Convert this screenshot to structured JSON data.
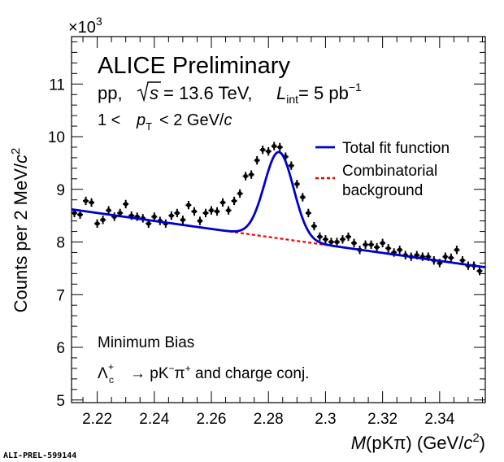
{
  "chart_data": {
    "type": "scatter",
    "experiment": "ALICE Preliminary",
    "collision_system": "pp,",
    "sqrt_s_label": "s",
    "energy_text": "= 13.6 TeV,",
    "lumi_symbol": "L",
    "lumi_sub": "int",
    "lumi_text": "= 5 pb",
    "lumi_sup": "−1",
    "pt_range_left": "1 <",
    "pt_symbol": "p",
    "pt_sub": "T",
    "pt_range_right": "< 2 GeV/",
    "pt_unit_c": "c",
    "trigger_label": "Minimum Bias",
    "decay_particle": "Λ",
    "decay_sup": "+",
    "decay_sub": "c",
    "decay_arrow": "→",
    "decay_products_p": "pK",
    "decay_products_k_sup": "−",
    "decay_products_pi": "π",
    "decay_products_pi_sup": "+",
    "decay_suffix": "and charge conj.",
    "multiplier_text": "×10",
    "multiplier_exp": "3",
    "xlabel_M": "M",
    "xlabel_rest": "(pKπ) (GeV/",
    "xlabel_c": "c",
    "xlabel_c_exp": "2",
    "xlabel_close": ")",
    "ylabel_main": "Counts per 2 MeV/",
    "ylabel_c": "c",
    "ylabel_c_exp": "2",
    "xlim": [
      2.211,
      2.356
    ],
    "ylim": [
      4.95,
      11.9
    ],
    "x_ticks": [
      "2.22",
      "2.24",
      "2.26",
      "2.28",
      "2.3",
      "2.32",
      "2.34"
    ],
    "y_ticks": [
      "5",
      "6",
      "7",
      "8",
      "9",
      "10",
      "11"
    ],
    "legend": [
      {
        "label": "Total fit function",
        "color": "#0000cc",
        "style": "solid"
      },
      {
        "label": "Combinatorial",
        "label2": "background",
        "color": "#ee0000",
        "style": "dashed"
      }
    ],
    "background_line": {
      "x": [
        2.211,
        2.356
      ],
      "y": [
        8.62,
        7.52
      ]
    },
    "peak": {
      "mean": 2.2837,
      "sigma": 0.0051,
      "amplitude": 1.64
    },
    "data_points": {
      "x": [
        2.212,
        2.214,
        2.216,
        2.218,
        2.22,
        2.222,
        2.224,
        2.226,
        2.228,
        2.23,
        2.232,
        2.234,
        2.236,
        2.238,
        2.24,
        2.242,
        2.244,
        2.246,
        2.248,
        2.25,
        2.252,
        2.254,
        2.256,
        2.258,
        2.26,
        2.262,
        2.264,
        2.266,
        2.268,
        2.27,
        2.272,
        2.274,
        2.276,
        2.278,
        2.28,
        2.282,
        2.284,
        2.286,
        2.288,
        2.29,
        2.292,
        2.294,
        2.296,
        2.298,
        2.3,
        2.302,
        2.304,
        2.306,
        2.308,
        2.31,
        2.312,
        2.314,
        2.316,
        2.318,
        2.32,
        2.322,
        2.324,
        2.326,
        2.328,
        2.33,
        2.332,
        2.334,
        2.336,
        2.338,
        2.34,
        2.342,
        2.344,
        2.346,
        2.348,
        2.35,
        2.352,
        2.354
      ],
      "y": [
        8.55,
        8.52,
        8.78,
        8.75,
        8.35,
        8.42,
        8.6,
        8.48,
        8.55,
        8.72,
        8.5,
        8.48,
        8.45,
        8.35,
        8.48,
        8.4,
        8.35,
        8.5,
        8.55,
        8.42,
        8.7,
        8.58,
        8.4,
        8.55,
        8.6,
        8.58,
        8.75,
        8.6,
        8.78,
        8.92,
        9.25,
        9.28,
        9.55,
        9.75,
        9.72,
        9.82,
        9.8,
        9.62,
        9.45,
        9.1,
        8.85,
        8.55,
        8.3,
        8.1,
        8.05,
        8.0,
        8.0,
        8.05,
        8.1,
        7.98,
        7.85,
        7.95,
        7.95,
        7.9,
        7.98,
        7.88,
        7.8,
        7.85,
        7.75,
        7.72,
        7.75,
        7.72,
        7.72,
        7.65,
        7.6,
        7.72,
        7.7,
        7.85,
        7.65,
        7.55,
        7.55,
        7.45
      ],
      "y_err": 0.08
    },
    "footer": "ALI-PREL-599144"
  }
}
